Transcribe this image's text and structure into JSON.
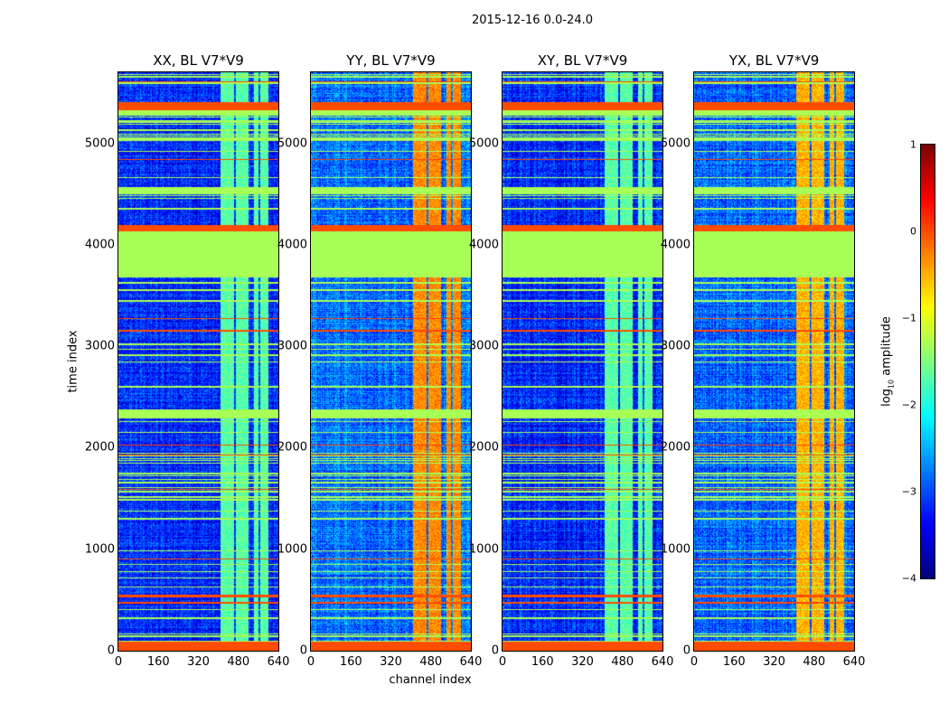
{
  "chart_data": {
    "type": "heatmap",
    "title": "2015-12-16 0.0-24.0",
    "xlabel": "channel index",
    "ylabel": "time index",
    "xlim": [
      0,
      640
    ],
    "ylim": [
      0,
      5700
    ],
    "xticks": [
      "0",
      "160",
      "320",
      "480",
      "640"
    ],
    "yticks": [
      "0",
      "1000",
      "2000",
      "3000",
      "4000",
      "5000"
    ],
    "panels": [
      {
        "title": "XX, BL V7*V9",
        "background": -3.2,
        "rfi_level": -1.7
      },
      {
        "title": "YY, BL V7*V9",
        "background": -2.8,
        "rfi_level": -0.3
      },
      {
        "title": "XY, BL V7*V9",
        "background": -3.2,
        "rfi_level": -1.7
      },
      {
        "title": "YX, BL V7*V9",
        "background": -2.9,
        "rfi_level": -0.5
      }
    ],
    "rfi_channels": [
      [
        405,
        460
      ],
      [
        470,
        520
      ],
      [
        540,
        560
      ],
      [
        565,
        600
      ]
    ],
    "time_bands": [
      {
        "from": 0,
        "to": 90,
        "value": 0.0
      },
      {
        "from": 2290,
        "to": 2380,
        "value": -1.3
      },
      {
        "from": 3680,
        "to": 4140,
        "value": -1.3
      },
      {
        "from": 4140,
        "to": 4200,
        "value": 0.0
      },
      {
        "from": 4500,
        "to": 4570,
        "value": -1.3
      },
      {
        "from": 5280,
        "to": 5330,
        "value": -1.3
      },
      {
        "from": 5330,
        "to": 5390,
        "value": 0.0
      }
    ],
    "colorbar": {
      "label": "log10 amplitude",
      "label_main": "log",
      "label_sub": "10",
      "label_rest": " amplitude",
      "range": [
        -4,
        1
      ],
      "ticks": [
        "1",
        "0",
        "−1",
        "−2",
        "−3",
        "−4"
      ],
      "colormap": "jet"
    }
  }
}
